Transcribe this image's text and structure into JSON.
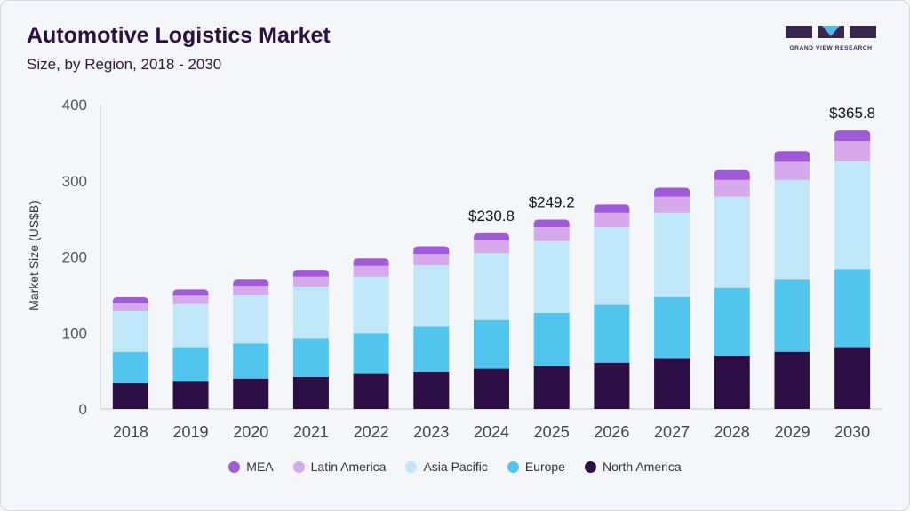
{
  "header": {
    "title": "Automotive Logistics Market",
    "subtitle": "Size, by Region, 2018 - 2030"
  },
  "logo": {
    "text": "GRAND VIEW RESEARCH",
    "color": "#3a2750",
    "accent": "#4fb8e8"
  },
  "chart_data": {
    "type": "bar",
    "stacked": true,
    "title": "Automotive Logistics Market",
    "subtitle": "Size, by Region, 2018 - 2030",
    "xlabel": "",
    "ylabel": "Market Size (US$B)",
    "ylim": [
      0,
      400
    ],
    "yticks": [
      0,
      100,
      200,
      300,
      400
    ],
    "grid": false,
    "legend_position": "bottom",
    "categories": [
      "2018",
      "2019",
      "2020",
      "2021",
      "2022",
      "2023",
      "2024",
      "2025",
      "2026",
      "2027",
      "2028",
      "2029",
      "2030"
    ],
    "series": [
      {
        "name": "North America",
        "color": "#2d0f45",
        "values": [
          34,
          36,
          40,
          42,
          46,
          49,
          53,
          56,
          61,
          66,
          70,
          75,
          81
        ]
      },
      {
        "name": "Europe",
        "color": "#52c5ef",
        "values": [
          41,
          45,
          46,
          51,
          54,
          59,
          64,
          70,
          76,
          81,
          89,
          95,
          103
        ]
      },
      {
        "name": "Asia Pacific",
        "color": "#c0e7f8",
        "values": [
          54,
          57,
          64,
          68,
          74,
          81,
          88,
          95,
          102,
          111,
          120,
          131,
          142
        ]
      },
      {
        "name": "Latin America",
        "color": "#d5a9ec",
        "values": [
          10,
          11,
          12,
          13,
          14,
          15,
          17,
          18,
          19,
          21,
          22,
          24,
          26
        ]
      },
      {
        "name": "MEA",
        "color": "#a05ad8",
        "values": [
          8,
          8,
          8,
          9,
          10,
          10,
          9,
          10,
          11,
          12,
          13,
          14,
          14
        ]
      }
    ],
    "annotations": [
      {
        "category": "2024",
        "label": "$230.8",
        "value": 230.8
      },
      {
        "category": "2025",
        "label": "$249.2",
        "value": 249.2
      },
      {
        "category": "2030",
        "label": "$365.8",
        "value": 365.8
      }
    ],
    "legend_order": [
      "MEA",
      "Latin America",
      "Asia Pacific",
      "Europe",
      "North America"
    ]
  }
}
